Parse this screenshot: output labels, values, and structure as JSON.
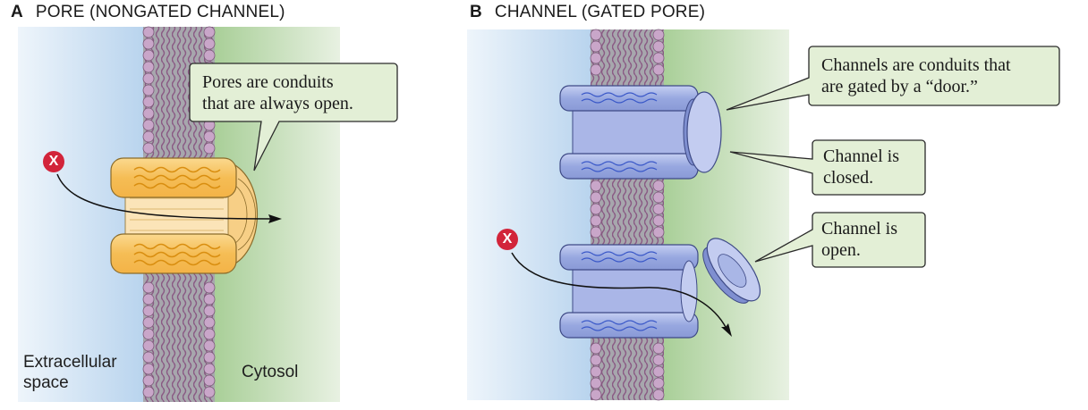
{
  "panel_a": {
    "letter": "A",
    "title": "PORE (NONGATED CHANNEL)",
    "callout_line1": "Pores are conduits",
    "callout_line2": "that are always open.",
    "label_extracellular_line1": "Extracellular",
    "label_extracellular_line2": "space",
    "label_cytosol": "Cytosol"
  },
  "panel_b": {
    "letter": "B",
    "title": "CHANNEL (GATED PORE)",
    "callout_top_line1": "Channels are conduits that",
    "callout_top_line2": "are gated by a “door.”",
    "callout_closed_line1": "Channel is",
    "callout_closed_line2": "closed.",
    "callout_open_line1": "Channel is",
    "callout_open_line2": "open."
  },
  "marker": {
    "symbol": "X"
  },
  "colors": {
    "extracellular": "#c9dff2",
    "cytosol": "#cfe3c4",
    "membrane": "#a9a9ad",
    "lipid_head": "#c9a6c9",
    "pore_fill": "#f5c36a",
    "channel_fill": "#a9b6e6",
    "callout_fill": "#e3efd6",
    "marker_red": "#d2243a"
  }
}
